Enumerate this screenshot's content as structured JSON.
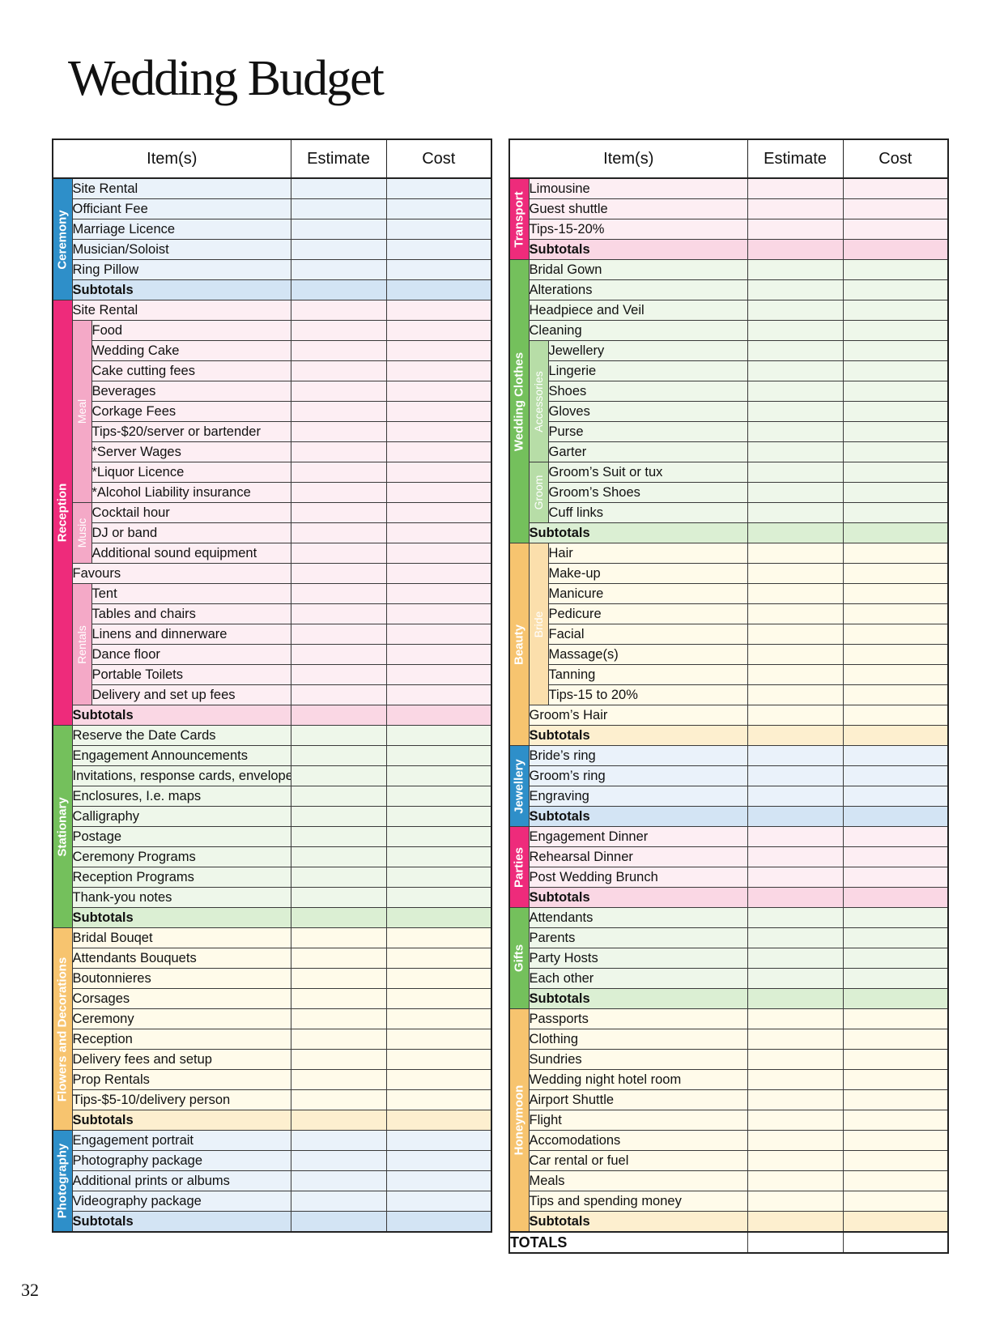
{
  "title": "Wedding Budget",
  "page_number": "32",
  "columns": {
    "item": "Item(s)",
    "estimate": "Estimate",
    "cost": "Cost"
  },
  "totals_label": "TOTALS",
  "colors": {
    "blue": "#2e8fc9",
    "blue_light": "#eaf2fa",
    "blue_sub": "#d3e4f4",
    "pink": "#ee2b7b",
    "pink_light": "#fdeef3",
    "pink_sub": "#fad7e4",
    "pink_mid": "#f4a9c7",
    "green": "#74c05c",
    "green_light": "#eef7ea",
    "green_sub": "#dbefd3",
    "green_mid": "#b7dda7",
    "orange": "#f7c46f",
    "orange_light": "#fffbea",
    "orange_sub": "#fdefcf",
    "orange_mid": "#fbdfac"
  },
  "left": [
    {
      "label": "Ceremony",
      "color": "blue",
      "rows": [
        {
          "t": "Site Rental"
        },
        {
          "t": "Officiant Fee"
        },
        {
          "t": "Marriage Licence"
        },
        {
          "t": "Musician/Soloist"
        },
        {
          "t": "Ring Pillow"
        },
        {
          "t": "Subtotals",
          "sub": true
        }
      ]
    },
    {
      "label": "Reception",
      "color": "pink",
      "rows": [
        {
          "t": "Site Rental"
        },
        {
          "t": "Food",
          "grp": "Meal"
        },
        {
          "t": "Wedding Cake",
          "grp": "Meal"
        },
        {
          "t": "Cake cutting fees",
          "grp": "Meal"
        },
        {
          "t": "Beverages",
          "grp": "Meal"
        },
        {
          "t": "Corkage Fees",
          "grp": "Meal"
        },
        {
          "t": "Tips-$20/server or bartender",
          "grp": "Meal"
        },
        {
          "t": "*Server Wages",
          "grp": "Meal"
        },
        {
          "t": "*Liquor Licence",
          "grp": "Meal"
        },
        {
          "t": "*Alcohol Liability insurance",
          "grp": "Meal"
        },
        {
          "t": "Cocktail hour",
          "grp": "Music"
        },
        {
          "t": "DJ or band",
          "grp": "Music"
        },
        {
          "t": "Additional sound equipment",
          "grp": "Music"
        },
        {
          "t": "Favours"
        },
        {
          "t": "Tent",
          "grp": "Rentals"
        },
        {
          "t": "Tables and chairs",
          "grp": "Rentals"
        },
        {
          "t": "Linens and dinnerware",
          "grp": "Rentals"
        },
        {
          "t": "Dance floor",
          "grp": "Rentals"
        },
        {
          "t": "Portable Toilets",
          "grp": "Rentals"
        },
        {
          "t": "Delivery and set up fees",
          "grp": "Rentals"
        },
        {
          "t": "Subtotals",
          "sub": true
        }
      ]
    },
    {
      "label": "Stationary",
      "color": "green",
      "rows": [
        {
          "t": "Reserve the Date Cards"
        },
        {
          "t": "Engagement Announcements"
        },
        {
          "t": "Invitations, response cards, envelopes"
        },
        {
          "t": "Enclosures, I.e. maps"
        },
        {
          "t": "Calligraphy"
        },
        {
          "t": "Postage"
        },
        {
          "t": "Ceremony Programs"
        },
        {
          "t": "Reception Programs"
        },
        {
          "t": "Thank-you notes"
        },
        {
          "t": "Subtotals",
          "sub": true
        }
      ]
    },
    {
      "label": "Flowers and Decorations",
      "color": "orange",
      "rows": [
        {
          "t": "Bridal Bouqet"
        },
        {
          "t": "Attendants Bouquets"
        },
        {
          "t": "Boutonnieres"
        },
        {
          "t": "Corsages"
        },
        {
          "t": "Ceremony"
        },
        {
          "t": "Reception"
        },
        {
          "t": "Delivery fees and setup"
        },
        {
          "t": "Prop Rentals"
        },
        {
          "t": "Tips-$5-10/delivery person"
        },
        {
          "t": "Subtotals",
          "sub": true
        }
      ]
    },
    {
      "label": "Photography",
      "color": "blue",
      "rows": [
        {
          "t": "Engagement portrait"
        },
        {
          "t": "Photography package"
        },
        {
          "t": "Additional prints or albums"
        },
        {
          "t": "Videography package"
        },
        {
          "t": "Subtotals",
          "sub": true
        }
      ]
    }
  ],
  "right": [
    {
      "label": "Transport",
      "color": "pink",
      "rows": [
        {
          "t": "Limousine"
        },
        {
          "t": "Guest shuttle"
        },
        {
          "t": "Tips-15-20%"
        },
        {
          "t": "Subtotals",
          "sub": true
        }
      ]
    },
    {
      "label": "Wedding Clothes",
      "color": "green",
      "rows": [
        {
          "t": "Bridal Gown"
        },
        {
          "t": "Alterations"
        },
        {
          "t": "Headpiece and Veil"
        },
        {
          "t": "Cleaning"
        },
        {
          "t": "Jewellery",
          "grp": "Accessories"
        },
        {
          "t": "Lingerie",
          "grp": "Accessories"
        },
        {
          "t": "Shoes",
          "grp": "Accessories"
        },
        {
          "t": "Gloves",
          "grp": "Accessories"
        },
        {
          "t": "Purse",
          "grp": "Accessories"
        },
        {
          "t": "Garter",
          "grp": "Accessories"
        },
        {
          "t": "Groom’s Suit or tux",
          "grp": "Groom"
        },
        {
          "t": "Groom’s Shoes",
          "grp": "Groom"
        },
        {
          "t": "Cuff links",
          "grp": "Groom"
        },
        {
          "t": "Subtotals",
          "sub": true
        }
      ]
    },
    {
      "label": "Beauty",
      "color": "orange",
      "rows": [
        {
          "t": "Hair",
          "grp": "Bride"
        },
        {
          "t": "Make-up",
          "grp": "Bride"
        },
        {
          "t": "Manicure",
          "grp": "Bride"
        },
        {
          "t": "Pedicure",
          "grp": "Bride"
        },
        {
          "t": "Facial",
          "grp": "Bride"
        },
        {
          "t": "Massage(s)",
          "grp": "Bride"
        },
        {
          "t": "Tanning",
          "grp": "Bride"
        },
        {
          "t": "Tips-15 to 20%",
          "grp": "Bride"
        },
        {
          "t": "Groom’s Hair"
        },
        {
          "t": "Subtotals",
          "sub": true
        }
      ]
    },
    {
      "label": "Jewellery",
      "color": "blue",
      "rows": [
        {
          "t": "Bride’s ring"
        },
        {
          "t": "Groom’s ring"
        },
        {
          "t": "Engraving"
        },
        {
          "t": "Subtotals",
          "sub": true
        }
      ]
    },
    {
      "label": "Parties",
      "color": "pink",
      "rows": [
        {
          "t": "Engagement Dinner"
        },
        {
          "t": "Rehearsal Dinner"
        },
        {
          "t": "Post Wedding Brunch"
        },
        {
          "t": "Subtotals",
          "sub": true
        }
      ]
    },
    {
      "label": "Gifts",
      "color": "green",
      "rows": [
        {
          "t": "Attendants"
        },
        {
          "t": "Parents"
        },
        {
          "t": "Party Hosts"
        },
        {
          "t": "Each other"
        },
        {
          "t": "Subtotals",
          "sub": true
        }
      ]
    },
    {
      "label": "Honeymoon",
      "color": "orange",
      "rows": [
        {
          "t": "Passports"
        },
        {
          "t": "Clothing"
        },
        {
          "t": "Sundries"
        },
        {
          "t": "Wedding night hotel room"
        },
        {
          "t": "Airport Shuttle"
        },
        {
          "t": "Flight"
        },
        {
          "t": "Accomodations"
        },
        {
          "t": "Car rental or fuel"
        },
        {
          "t": "Meals"
        },
        {
          "t": "Tips and spending money"
        },
        {
          "t": "Subtotals",
          "sub": true
        }
      ]
    }
  ]
}
